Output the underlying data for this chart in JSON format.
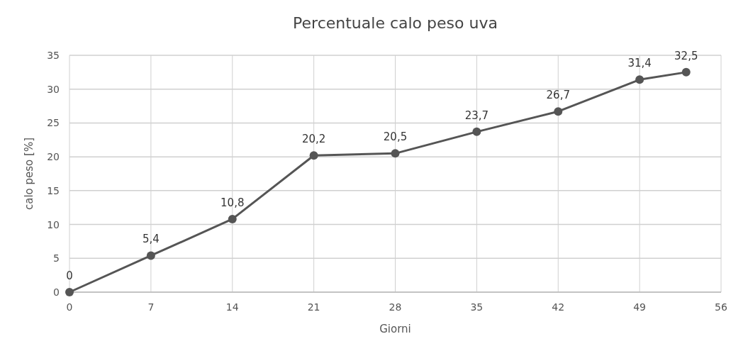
{
  "chart_data": {
    "type": "line",
    "title": "Percentuale calo peso uva",
    "xlabel": "Giorni",
    "ylabel": "calo peso [%]",
    "x": [
      0,
      7,
      14,
      21,
      28,
      35,
      42,
      49,
      53
    ],
    "series": [
      {
        "color": "#555555",
        "values": [
          0,
          5.4,
          10.8,
          20.2,
          20.5,
          23.7,
          26.7,
          31.4,
          32.5
        ],
        "value_labels": [
          "0",
          "5,4",
          "10,8",
          "20,2",
          "20,5",
          "23,7",
          "26,7",
          "31,4",
          "32,5"
        ]
      }
    ],
    "xlim": [
      0,
      56
    ],
    "xticks": [
      0,
      7,
      14,
      21,
      28,
      35,
      42,
      49,
      56
    ],
    "ylim": [
      0,
      35
    ],
    "yticks": [
      0,
      5,
      10,
      15,
      20,
      25,
      30,
      35
    ],
    "grid": true,
    "marker": "circle",
    "line_style": "solid"
  }
}
